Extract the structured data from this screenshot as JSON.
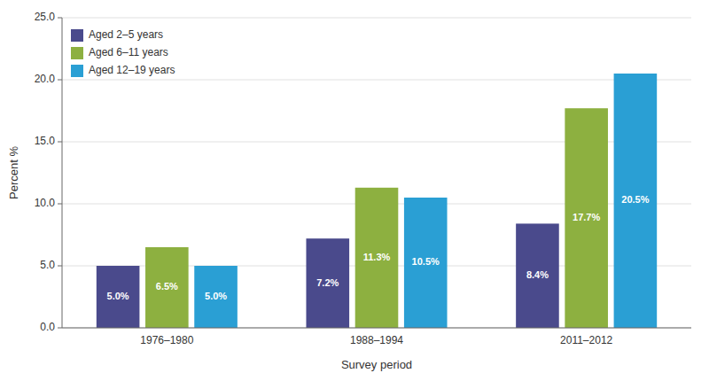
{
  "chart_data": {
    "type": "bar",
    "categories": [
      "1976–1980",
      "1988–1994",
      "2011–2012"
    ],
    "series": [
      {
        "name": "Aged 2–5 years",
        "color": "#4a4a8c",
        "values": [
          5.0,
          7.2,
          8.4
        ],
        "value_labels": [
          "5.0%",
          "7.2%",
          "8.4%"
        ]
      },
      {
        "name": "Aged 6–11 years",
        "color": "#8db040",
        "values": [
          6.5,
          11.3,
          17.7
        ],
        "value_labels": [
          "6.5%",
          "11.3%",
          "17.7%"
        ]
      },
      {
        "name": "Aged 12–19 years",
        "color": "#2a9fd4",
        "values": [
          5.0,
          10.5,
          20.5
        ],
        "value_labels": [
          "5.0%",
          "10.5%",
          "20.5%"
        ]
      }
    ],
    "ylabel": "Percent %",
    "xlabel": "Survey period",
    "ylim": [
      0,
      25
    ],
    "yticks": [
      {
        "value": 0,
        "label": "0.0"
      },
      {
        "value": 5,
        "label": "5.0"
      },
      {
        "value": 10,
        "label": "10.0"
      },
      {
        "value": 15,
        "label": "15.0"
      },
      {
        "value": 20,
        "label": "20.0"
      },
      {
        "value": 25,
        "label": "25.0"
      }
    ],
    "grid": true,
    "legend": "upper left",
    "data_labels": true
  }
}
